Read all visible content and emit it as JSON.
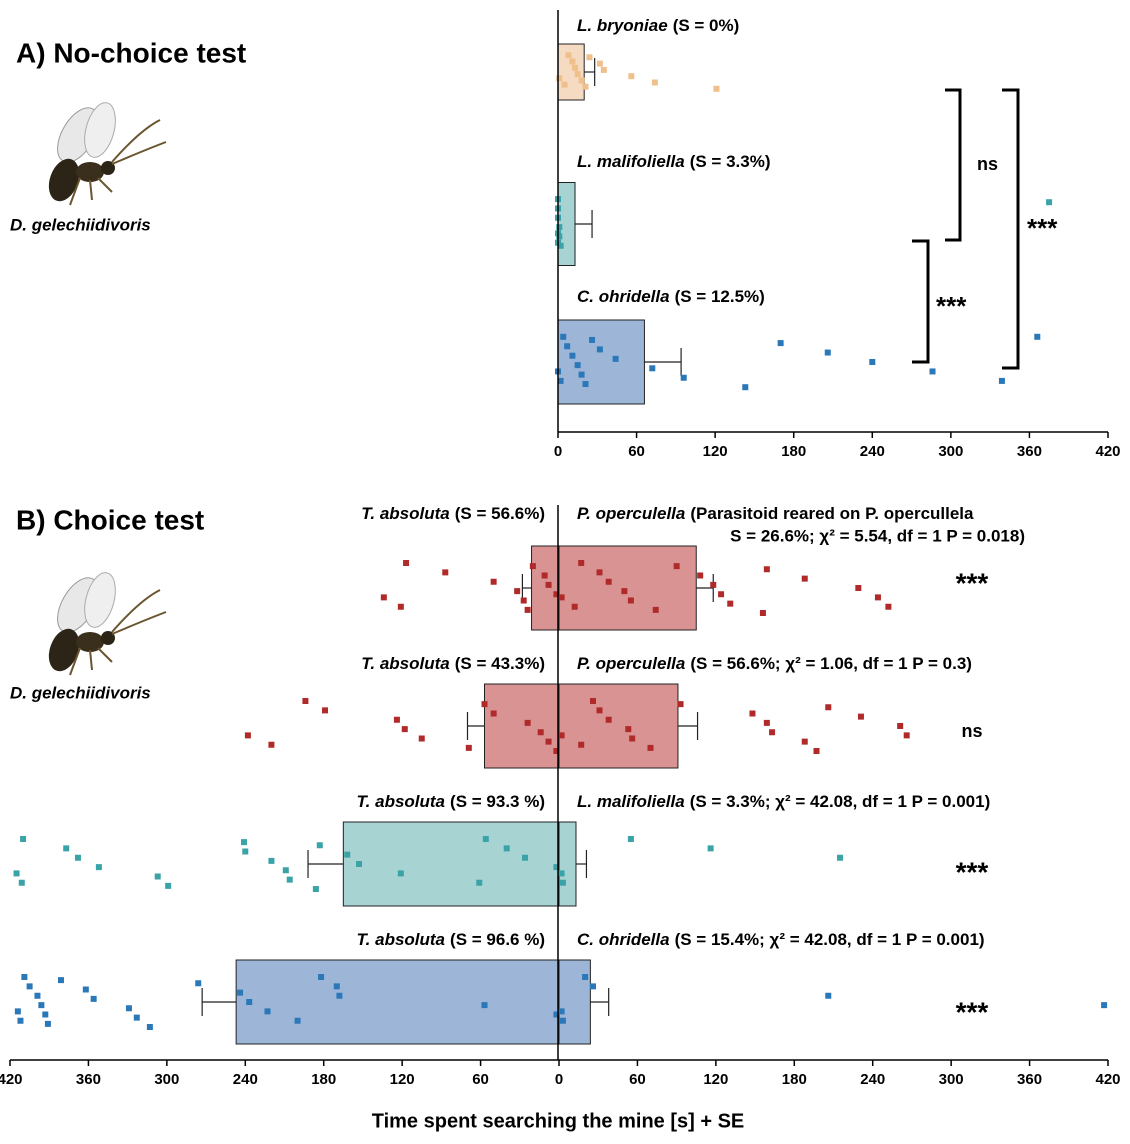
{
  "chart_data": [
    {
      "type": "bar",
      "orientation": "horizontal",
      "title": "A) No-choice test",
      "species_label": "D. gelechiidivoris",
      "xlim": [
        0,
        420
      ],
      "xticks": [
        0,
        60,
        120,
        180,
        240,
        300,
        360,
        420
      ],
      "bars": [
        {
          "label": "L. bryoniae",
          "note": "(S = 0%)",
          "value": 20,
          "error": 8,
          "color": "#f6dbc3",
          "point_color": "#f0c08c",
          "points": [
            1,
            5,
            8,
            11,
            13,
            15,
            18,
            21,
            24,
            32,
            35,
            56,
            74,
            121
          ]
        },
        {
          "label": "L. malifoliella",
          "note": "(S = 3.3%)",
          "value": 13,
          "error": 13,
          "color": "#a8d3d3",
          "point_color": "#3aa3a8",
          "points": [
            0,
            0,
            0,
            0,
            0,
            1,
            1,
            2,
            375
          ]
        },
        {
          "label": "C. ohridella",
          "note": "(S = 12.5%)",
          "value": 66,
          "error": 28,
          "color": "#9db6d8",
          "point_color": "#2a78b8",
          "points": [
            0,
            2,
            4,
            7,
            11,
            15,
            18,
            21,
            26,
            32,
            44,
            72,
            96,
            143,
            170,
            206,
            240,
            286,
            339,
            366
          ]
        }
      ],
      "brackets": [
        "ns",
        "***",
        "***"
      ]
    },
    {
      "type": "bar",
      "orientation": "diverging",
      "title": "B) Choice test",
      "species_label": "D. gelechiidivoris",
      "x_label": "Time spent searching the mine [s] + SE",
      "xlim": [
        -420,
        420
      ],
      "xticks": [
        {
          "value": -420,
          "label": "420"
        },
        {
          "value": -360,
          "label": "360"
        },
        {
          "value": -300,
          "label": "300"
        },
        {
          "value": -240,
          "label": "240"
        },
        {
          "value": -180,
          "label": "180"
        },
        {
          "value": -120,
          "label": "120"
        },
        {
          "value": -60,
          "label": "60"
        },
        0,
        60,
        120,
        180,
        240,
        300,
        360,
        420
      ],
      "rows": [
        {
          "color": "#d99393",
          "point_color": "#b02a2a",
          "significance": "***",
          "left": {
            "label": "T. absoluta",
            "note": "(S = 56.6%)",
            "value": -21,
            "error": 7,
            "points": [
              -134,
              -121,
              -117,
              -87,
              -50,
              -32,
              -27,
              -24,
              -20,
              -11,
              -8,
              -2
            ]
          },
          "right": {
            "label": "P. operculella",
            "note": [
              "(Parasitoid reared on P. opercullela",
              "S = 26.6%; χ² = 5.54, df = 1 P = 0.018)"
            ],
            "value": 105,
            "error": 13,
            "points": [
              2,
              12,
              17,
              31,
              38,
              50,
              55,
              74,
              90,
              108,
              118,
              124,
              131,
              156,
              159,
              188,
              229,
              244,
              252
            ]
          }
        },
        {
          "color": "#d99393",
          "point_color": "#b02a2a",
          "significance": "ns",
          "left": {
            "label": "T. absoluta",
            "note": "(S = 43.3%)",
            "value": -57,
            "error": 13,
            "points": [
              -238,
              -220,
              -194,
              -179,
              -124,
              -118,
              -105,
              -69,
              -57,
              -50,
              -24,
              -14,
              -8,
              -2
            ]
          },
          "right": {
            "label": "P. operculella",
            "note": [
              "(S = 56.6%; χ² = 1.06, df = 1 P = 0.3)"
            ],
            "value": 91,
            "error": 15,
            "points": [
              2,
              17,
              26,
              31,
              38,
              53,
              56,
              70,
              93,
              148,
              159,
              163,
              188,
              197,
              206,
              231,
              261,
              266
            ]
          }
        },
        {
          "color": "#a8d3d3",
          "point_color": "#3aa3a8",
          "significance": "***",
          "left": {
            "label": "T. absoluta",
            "note": "(S = 93.3 %)",
            "value": -165,
            "error": 27,
            "points": [
              -415,
              -411,
              -410,
              -377,
              -368,
              -352,
              -307,
              -299,
              -241,
              -240,
              -220,
              -209,
              -206,
              -186,
              -183,
              -162,
              -153,
              -121,
              -61,
              -56,
              -40,
              -26,
              -2
            ]
          },
          "right": {
            "label": "L. malifoliella",
            "note": [
              "(S = 3.3%; χ² = 42.08, df = 1 P = 0.001)"
            ],
            "value": 13,
            "error": 8,
            "points": [
              2,
              3,
              55,
              116,
              215
            ]
          }
        },
        {
          "color": "#9db6d8",
          "point_color": "#2a78b8",
          "significance": "***",
          "left": {
            "label": "T. absoluta",
            "note": "(S = 96.6 %)",
            "value": -247,
            "error": 26,
            "points": [
              -414,
              -412,
              -409,
              -405,
              -399,
              -396,
              -393,
              -391,
              -381,
              -362,
              -356,
              -329,
              -323,
              -313,
              -276,
              -244,
              -237,
              -223,
              -200,
              -182,
              -170,
              -168,
              -57,
              -2
            ]
          },
          "right": {
            "label": "C. ohridella",
            "note": [
              "(S = 15.4%; χ² = 42.08, df = 1 P = 0.001)"
            ],
            "value": 24,
            "error": 14,
            "points": [
              2,
              3,
              20,
              26,
              206,
              417
            ]
          }
        }
      ]
    }
  ]
}
